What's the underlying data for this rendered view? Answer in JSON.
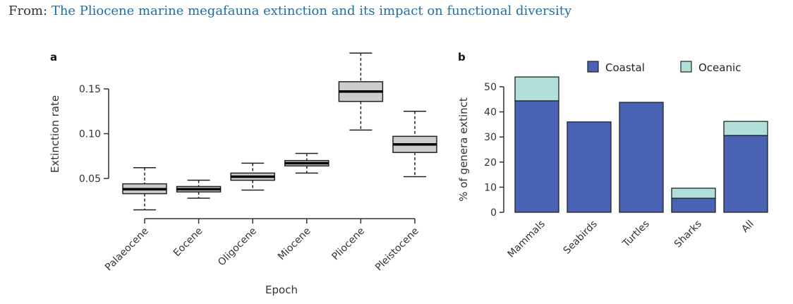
{
  "header": {
    "prefix": "From:",
    "link_text": "The Pliocene marine megafauna extinction and its impact on functional diversity"
  },
  "colors": {
    "box_fill": "#cccccc",
    "coastal": "#4a62b4",
    "oceanic": "#b1e0da",
    "link": "#1f6f9f"
  },
  "chart_data": [
    {
      "panel": "a",
      "type": "box",
      "title": "",
      "xlabel": "Epoch",
      "ylabel": "Extinction rate",
      "ylim": [
        0.01,
        0.195
      ],
      "yticks": [
        0.05,
        0.1,
        0.15
      ],
      "ytick_labels": [
        "0.05",
        "0.10",
        "0.15"
      ],
      "categories": [
        "Palaeocene",
        "Eocene",
        "Oligocene",
        "Miocene",
        "Pliocene",
        "Pleistocene"
      ],
      "boxes": [
        {
          "min": 0.015,
          "q1": 0.033,
          "median": 0.038,
          "q3": 0.044,
          "max": 0.062
        },
        {
          "min": 0.028,
          "q1": 0.035,
          "median": 0.038,
          "q3": 0.041,
          "max": 0.048
        },
        {
          "min": 0.037,
          "q1": 0.048,
          "median": 0.052,
          "q3": 0.056,
          "max": 0.067
        },
        {
          "min": 0.056,
          "q1": 0.064,
          "median": 0.067,
          "q3": 0.07,
          "max": 0.078
        },
        {
          "min": 0.104,
          "q1": 0.136,
          "median": 0.147,
          "q3": 0.158,
          "max": 0.19
        },
        {
          "min": 0.052,
          "q1": 0.079,
          "median": 0.088,
          "q3": 0.097,
          "max": 0.125
        }
      ],
      "grid": false
    },
    {
      "panel": "b",
      "type": "bar",
      "stacked": true,
      "title": "",
      "xlabel": "",
      "ylabel": "% of genera extinct",
      "ylim": [
        0,
        55
      ],
      "yticks": [
        0,
        10,
        20,
        30,
        40,
        50
      ],
      "categories": [
        "Mammals",
        "Seabirds",
        "Turtles",
        "Sharks",
        "All"
      ],
      "series": [
        {
          "name": "Coastal",
          "values": [
            44.4,
            36.0,
            43.8,
            5.6,
            30.6
          ]
        },
        {
          "name": "Oceanic",
          "values": [
            9.5,
            0,
            0,
            4.0,
            5.6
          ]
        }
      ],
      "legend": {
        "placement": "top",
        "entries": [
          "Coastal",
          "Oceanic"
        ]
      },
      "grid": false
    }
  ]
}
